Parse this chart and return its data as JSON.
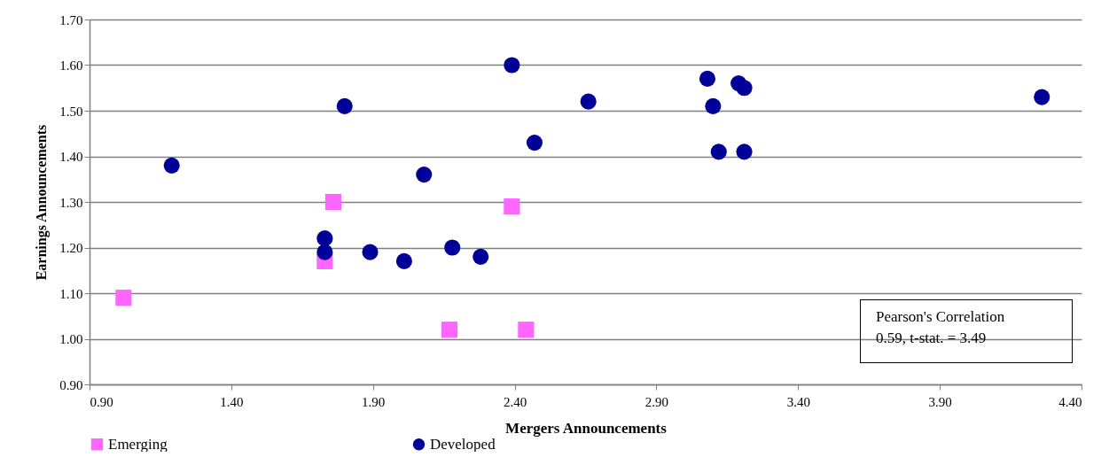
{
  "chart_data": {
    "type": "scatter",
    "xlabel": "Mergers Announcements",
    "ylabel": "Earnings Announcements",
    "xlim": [
      0.9,
      4.4
    ],
    "xticks": [
      {
        "value": 0.9,
        "label": "0.90"
      },
      {
        "value": 1.4,
        "label": "1.40"
      },
      {
        "value": 1.9,
        "label": "1.90"
      },
      {
        "value": 2.4,
        "label": "2.40"
      },
      {
        "value": 2.9,
        "label": "2.90"
      },
      {
        "value": 3.4,
        "label": "3.40"
      },
      {
        "value": 3.9,
        "label": "3.90"
      },
      {
        "value": 4.4,
        "label": "4.40"
      }
    ],
    "ylim": [
      0.9,
      1.7
    ],
    "yticks": [
      {
        "value": 0.9,
        "label": "0.90"
      },
      {
        "value": 1.0,
        "label": "1.00"
      },
      {
        "value": 1.1,
        "label": "1.10"
      },
      {
        "value": 1.2,
        "label": "1.20"
      },
      {
        "value": 1.3,
        "label": "1.30"
      },
      {
        "value": 1.4,
        "label": "1.40"
      },
      {
        "value": 1.5,
        "label": "1.50"
      },
      {
        "value": 1.6,
        "label": "1.60"
      },
      {
        "value": 1.7,
        "label": "1.70"
      }
    ],
    "grid": "y",
    "legend": "bottom",
    "annotations": [
      "Pearson's Correlation\n0.59, t-stat. = 3.49"
    ],
    "series": [
      {
        "name": "Emerging",
        "color": "#ff66ff",
        "marker": "square",
        "x": [
          1.02,
          1.76,
          1.73,
          2.17,
          2.39,
          2.44
        ],
        "values": [
          1.09,
          1.3,
          1.17,
          1.02,
          1.29,
          1.02
        ]
      },
      {
        "name": "Developed",
        "color": "#000099",
        "marker": "circle",
        "x": [
          1.19,
          1.8,
          1.73,
          1.73,
          1.89,
          2.01,
          2.08,
          2.18,
          2.28,
          2.39,
          2.47,
          2.66,
          3.08,
          3.1,
          3.12,
          3.19,
          3.21,
          3.21,
          4.26
        ],
        "values": [
          1.38,
          1.51,
          1.22,
          1.19,
          1.19,
          1.17,
          1.36,
          1.2,
          1.18,
          1.6,
          1.43,
          1.52,
          1.57,
          1.51,
          1.41,
          1.56,
          1.55,
          1.41,
          1.53
        ]
      }
    ]
  }
}
